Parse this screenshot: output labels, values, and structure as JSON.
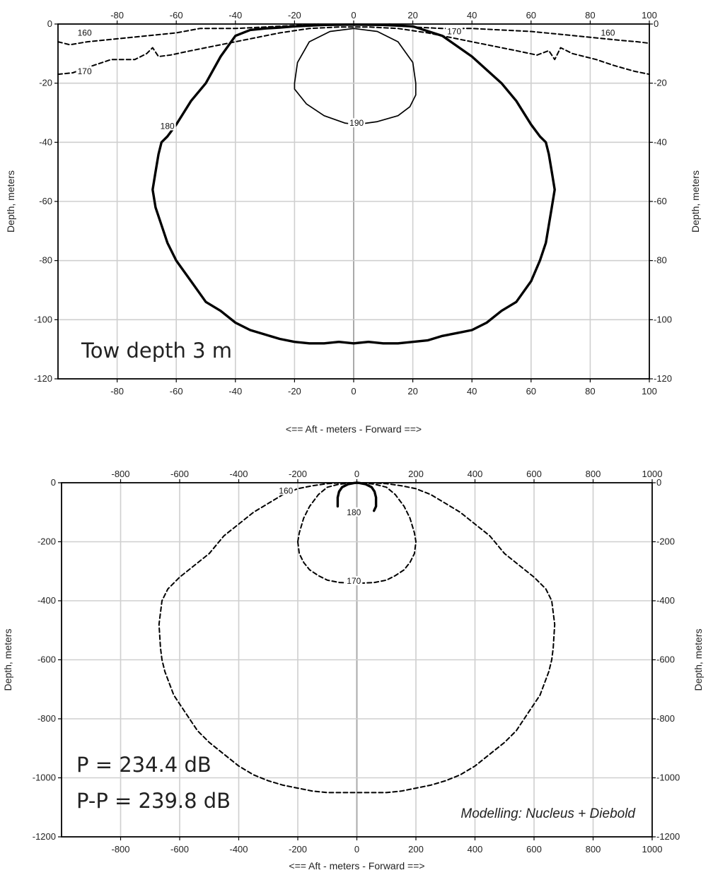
{
  "chart_data": [
    {
      "type": "line",
      "xlabel": "<==   Aft   - meters -  Forward  ==>",
      "ylabel": "Depth, meters",
      "xlim": [
        -100,
        100
      ],
      "ylim": [
        -120,
        0
      ],
      "xticks": [
        -80,
        -60,
        -40,
        -20,
        0,
        20,
        40,
        60,
        80,
        100
      ],
      "yticks": [
        0,
        -20,
        -40,
        -60,
        -80,
        -100,
        -120
      ],
      "grid": true,
      "annotation": "Tow depth 3 m",
      "contour_labels": [
        {
          "text": "160",
          "x": -91,
          "y": -3.5
        },
        {
          "text": "160",
          "x": 86,
          "y": -3.5
        },
        {
          "text": "170",
          "x": 34,
          "y": -3
        },
        {
          "text": "170",
          "x": -91,
          "y": -16.5
        },
        {
          "text": "180",
          "x": -63,
          "y": -35
        },
        {
          "text": "190",
          "x": 1,
          "y": -34
        }
      ],
      "series": [
        {
          "style": "dashed",
          "x": [
            -100,
            -96,
            -90,
            -80,
            -70,
            -60,
            -52,
            -40,
            -30,
            -20,
            -12
          ],
          "y": [
            -6,
            -7,
            -6,
            -5,
            -4,
            -3,
            -1.5,
            -1.5,
            -1,
            -0.5,
            0
          ]
        },
        {
          "style": "dashed",
          "x": [
            12,
            20,
            30,
            40,
            50,
            60,
            70,
            80,
            90,
            96,
            100
          ],
          "y": [
            0,
            -1,
            -1.5,
            -1.5,
            -2,
            -2.5,
            -3.5,
            -4.5,
            -5.5,
            -6,
            -6.5
          ]
        },
        {
          "style": "dashed",
          "x": [
            -100,
            -95,
            -88,
            -82,
            -74,
            -70,
            -68,
            -66,
            -62,
            -55,
            -45,
            -35,
            -25,
            -15,
            -5,
            5,
            15,
            25,
            35,
            45,
            55,
            62,
            66,
            68,
            70,
            74,
            82,
            88,
            95,
            100
          ],
          "y": [
            -17,
            -16.5,
            -14,
            -12,
            -12,
            -10,
            -8,
            -11,
            -10.5,
            -9,
            -7,
            -5,
            -3,
            -1.5,
            -1,
            -1,
            -1.5,
            -3,
            -5,
            -7,
            -9,
            -10.5,
            -9,
            -12,
            -8,
            -10,
            -12,
            -14,
            -16,
            -17
          ]
        },
        {
          "style": "solid-thick",
          "x": [
            -20,
            -10,
            0,
            10,
            20,
            30,
            40,
            50,
            55,
            60,
            63,
            65,
            66,
            67,
            68,
            67,
            66,
            65,
            63,
            60,
            55,
            50,
            45,
            40,
            35,
            30,
            25,
            20,
            15,
            10,
            5,
            0,
            -5,
            -10,
            -15,
            -20,
            -25,
            -30,
            -35,
            -40,
            -45,
            -50,
            -55,
            -60,
            -63,
            -65,
            -67,
            -68,
            -67,
            -66,
            -65,
            -63,
            -60,
            -55,
            -50,
            -45,
            -40,
            -35,
            -30,
            -25,
            -20
          ],
          "y": [
            -0.8,
            -0.3,
            -0.2,
            -0.3,
            -0.8,
            -4,
            -11,
            -20,
            -26,
            -34,
            -38,
            -40,
            -44,
            -50,
            -56,
            -62,
            -68,
            -74,
            -80,
            -87,
            -94,
            -97,
            -101,
            -103.5,
            -104.5,
            -105.5,
            -107,
            -107.5,
            -108,
            -108,
            -107.5,
            -108,
            -107.5,
            -108,
            -108,
            -107.5,
            -106.5,
            -105,
            -103.5,
            -101,
            -97,
            -94,
            -87,
            -80,
            -74,
            -68,
            -62,
            -56,
            -50,
            -44,
            -40,
            -38,
            -34,
            -26,
            -20,
            -11,
            -4,
            -2,
            -1.5,
            -1.2,
            -0.8
          ]
        },
        {
          "style": "solid-thin",
          "x": [
            -20,
            -19,
            -15,
            -8,
            0,
            8,
            15,
            20,
            21,
            21,
            19,
            15,
            8,
            1,
            -3,
            -10,
            -16,
            -20,
            -20
          ],
          "y": [
            -20,
            -13,
            -6,
            -2.5,
            -1.5,
            -2.5,
            -6,
            -13,
            -20,
            -24,
            -28,
            -31,
            -33,
            -34,
            -33.5,
            -31,
            -27,
            -22,
            -20
          ]
        }
      ]
    },
    {
      "type": "line",
      "xlabel": "<==   Aft   - meters -  Forward  ==>",
      "ylabel": "Depth, meters",
      "xlim": [
        -1000,
        1000
      ],
      "ylim": [
        -1200,
        0
      ],
      "xticks": [
        -800,
        -600,
        -400,
        -200,
        0,
        200,
        400,
        600,
        800,
        1000
      ],
      "yticks": [
        0,
        -200,
        -400,
        -600,
        -800,
        -1000,
        -1200
      ],
      "grid": true,
      "annotations": [
        "P = 234.4 dB",
        "P-P = 239.8 dB",
        "Modelling: Nucleus + Diebold"
      ],
      "contour_labels": [
        {
          "text": "160",
          "x": -240,
          "y": -32
        },
        {
          "text": "180",
          "x": -10,
          "y": -105
        },
        {
          "text": "170",
          "x": -10,
          "y": -338
        }
      ],
      "series": [
        {
          "style": "dashed",
          "x": [
            -100,
            -60,
            -20,
            0,
            20,
            60,
            100,
            150,
            200,
            250,
            300,
            350,
            400,
            450,
            500,
            550,
            600,
            640,
            660,
            670,
            665,
            660,
            650,
            620,
            580,
            540,
            500,
            450,
            400,
            350,
            300,
            250,
            200,
            150,
            100,
            50,
            0,
            -50,
            -100,
            -150,
            -200,
            -250,
            -300,
            -350,
            -400,
            -450,
            -500,
            -540,
            -580,
            -620,
            -650,
            -660,
            -665,
            -670,
            -660,
            -640,
            -600,
            -550,
            -500,
            -450,
            -400,
            -350,
            -300,
            -250,
            -200,
            -150,
            -100
          ],
          "y": [
            -3,
            -1,
            0,
            0,
            0,
            -1,
            -3,
            -10,
            -20,
            -40,
            -70,
            -100,
            -140,
            -180,
            -240,
            -280,
            -320,
            -360,
            -400,
            -480,
            -560,
            -600,
            -640,
            -720,
            -780,
            -840,
            -880,
            -920,
            -960,
            -990,
            -1010,
            -1025,
            -1035,
            -1045,
            -1050,
            -1050,
            -1050,
            -1050,
            -1050,
            -1045,
            -1035,
            -1025,
            -1010,
            -990,
            -960,
            -920,
            -880,
            -840,
            -780,
            -720,
            -640,
            -600,
            -560,
            -480,
            -400,
            -360,
            -320,
            -280,
            -240,
            -180,
            -140,
            -100,
            -70,
            -40,
            -20,
            -10,
            -3
          ]
        },
        {
          "style": "dashed",
          "x": [
            -200,
            -195,
            -180,
            -160,
            -130,
            -100,
            -60,
            -20,
            0,
            20,
            60,
            100,
            130,
            160,
            180,
            195,
            200,
            195,
            180,
            160,
            130,
            100,
            60,
            20,
            0,
            -20,
            -60,
            -100,
            -130,
            -160,
            -180,
            -195,
            -200
          ],
          "y": [
            -200,
            -170,
            -120,
            -80,
            -40,
            -15,
            -5,
            -1,
            0,
            -1,
            -5,
            -15,
            -40,
            -80,
            -120,
            -170,
            -200,
            -240,
            -270,
            -295,
            -315,
            -330,
            -338,
            -340,
            -340,
            -340,
            -338,
            -330,
            -315,
            -295,
            -270,
            -240,
            -200
          ]
        },
        {
          "style": "solid-thick",
          "x": [
            -65,
            -65,
            -60,
            -50,
            -30,
            -10,
            0,
            10,
            30,
            50,
            60,
            65,
            65,
            58
          ],
          "y": [
            -80,
            -50,
            -30,
            -15,
            -5,
            -1,
            0,
            -1,
            -5,
            -15,
            -30,
            -50,
            -80,
            -95
          ]
        }
      ]
    }
  ]
}
